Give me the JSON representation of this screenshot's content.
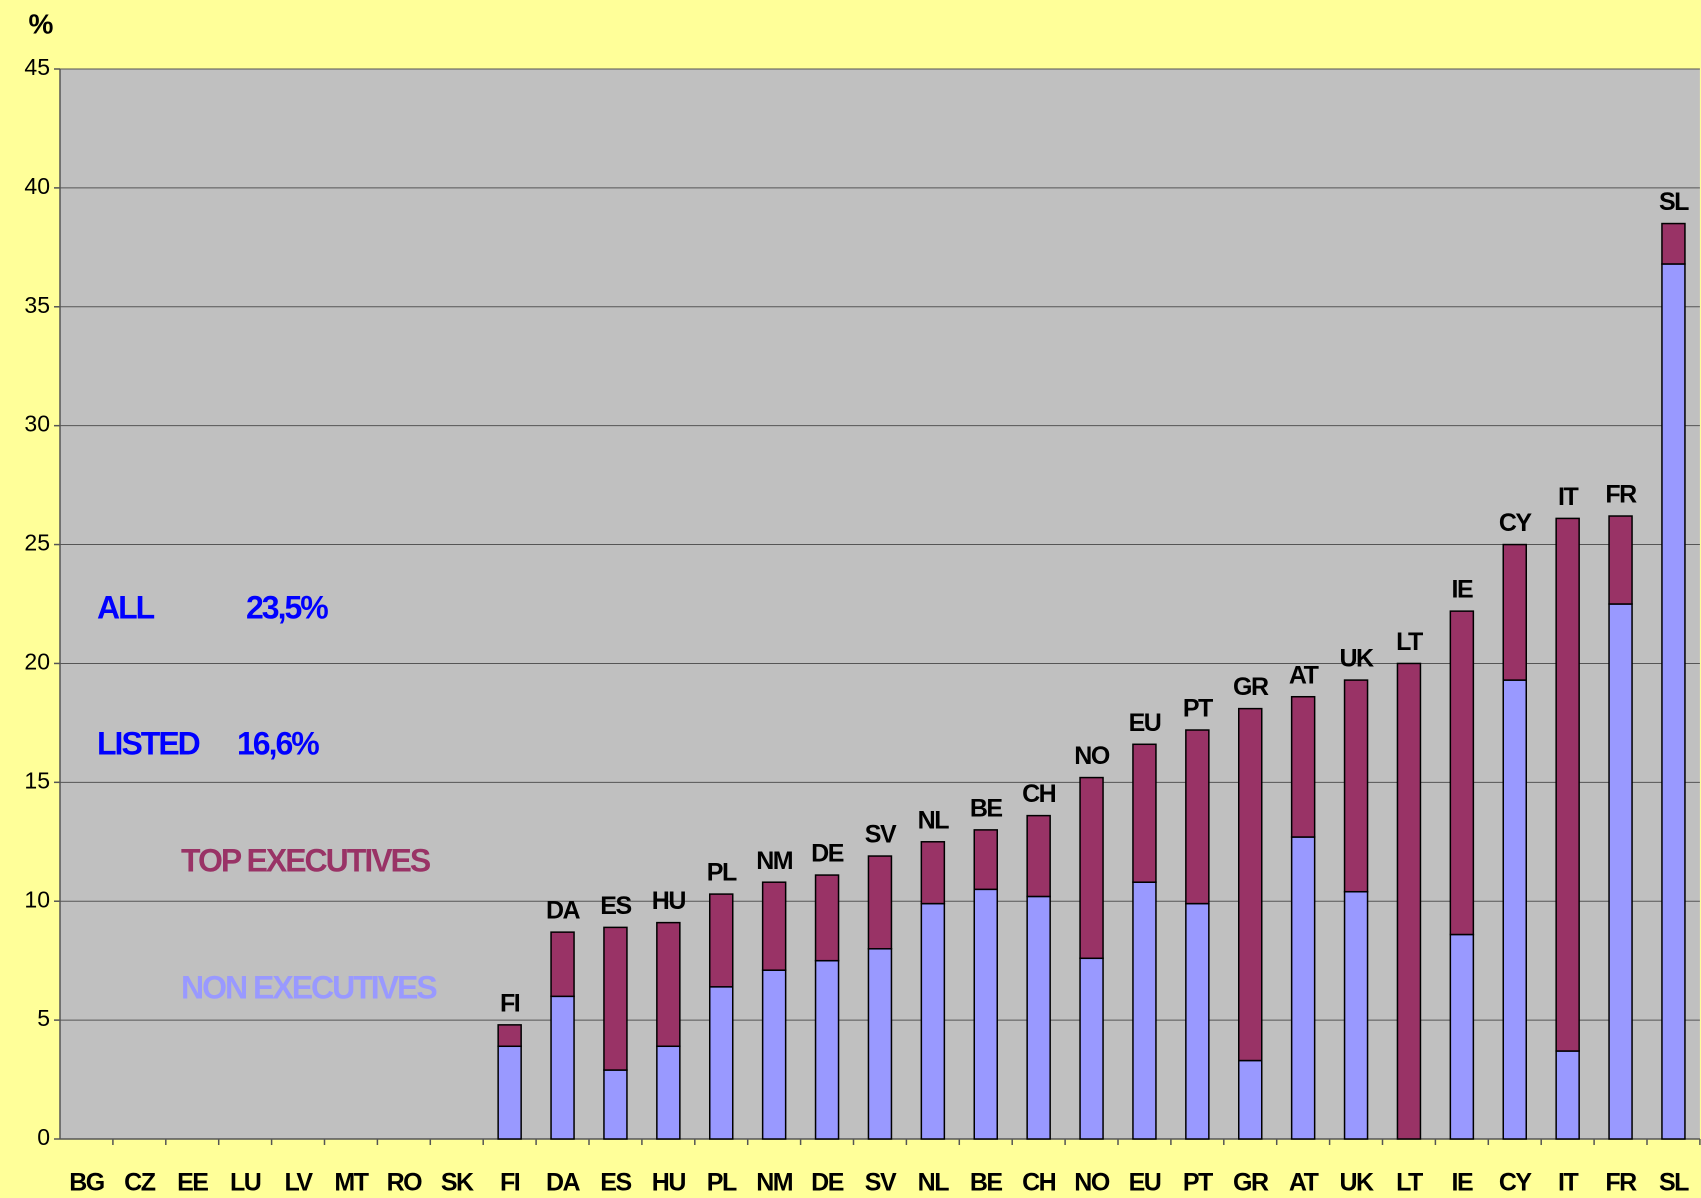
{
  "chart_data": {
    "type": "stacked_bar",
    "y_label": "%",
    "categories": [
      "BG",
      "CZ",
      "EE",
      "LU",
      "LV",
      "MT",
      "RO",
      "SK",
      "FI",
      "DA",
      "ES",
      "HU",
      "PL",
      "NM",
      "DE",
      "SV",
      "NL",
      "BE",
      "CH",
      "NO",
      "EU",
      "PT",
      "GR",
      "AT",
      "UK",
      "LT",
      "IE",
      "CY",
      "IT",
      "FR",
      "SL"
    ],
    "series": [
      {
        "name": "NON EXECUTIVES",
        "color": "#9999ff",
        "values": [
          null,
          null,
          null,
          null,
          null,
          null,
          null,
          null,
          3.9,
          6.0,
          2.9,
          3.9,
          6.4,
          7.1,
          7.5,
          8.0,
          9.9,
          10.5,
          10.2,
          7.6,
          10.8,
          9.9,
          3.3,
          12.7,
          10.4,
          0,
          8.6,
          19.3,
          3.7,
          22.5,
          36.8
        ]
      },
      {
        "name": "TOP EXECUTIVES",
        "color": "#993366",
        "values": [
          null,
          null,
          null,
          null,
          null,
          null,
          null,
          null,
          0.9,
          2.7,
          6.0,
          5.2,
          3.9,
          3.7,
          3.6,
          3.9,
          2.6,
          2.5,
          3.4,
          7.6,
          5.8,
          7.3,
          14.8,
          5.9,
          8.9,
          20.0,
          13.6,
          5.7,
          22.4,
          3.7,
          1.7
        ]
      }
    ],
    "annotations": [
      {
        "text": "ALL",
        "color": "#0000ff"
      },
      {
        "text": "23,5%",
        "color": "#0000ff"
      },
      {
        "text": "LISTED",
        "color": "#0000ff"
      },
      {
        "text": "16,6%",
        "color": "#0000ff"
      }
    ],
    "ylim": [
      0,
      45
    ],
    "yticks": [
      0,
      5,
      10,
      15,
      20,
      25,
      30,
      35,
      40,
      45
    ],
    "grid": true,
    "background": "#ffff99",
    "plot_background": "#c0c0c0"
  }
}
